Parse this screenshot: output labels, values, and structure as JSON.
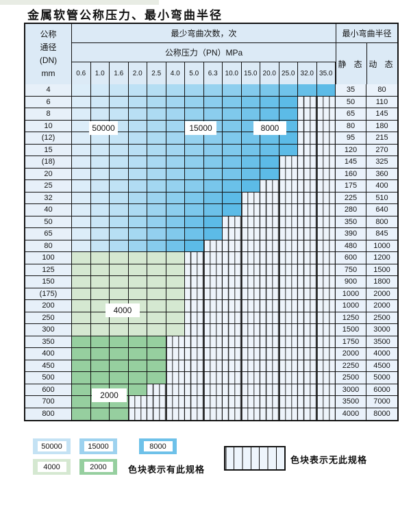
{
  "title": "金属软管公称压力、最小弯曲半径",
  "table": {
    "header": {
      "dn_lines": [
        "公称",
        "通径",
        "(DN)",
        "mm"
      ],
      "cycles_label": "最少弯曲次数，次",
      "radius_label": "最小弯曲半径",
      "pressure_label": "公称压力（PN）MPa",
      "pressure_columns": [
        "0.6",
        "1.0",
        "1.6",
        "2.0",
        "2.5",
        "4.0",
        "5.0",
        "6.3",
        "10.0",
        "15.0",
        "20.0",
        "25.0",
        "32.0",
        "35.0"
      ],
      "static_label": "静 态",
      "dynamic_label": "动 态"
    },
    "rows": [
      {
        "dn": "4",
        "colored": 14,
        "zone": "blue",
        "static": "35",
        "dynamic": "80"
      },
      {
        "dn": "6",
        "colored": 12,
        "zone": "blue",
        "static": "50",
        "dynamic": "110"
      },
      {
        "dn": "8",
        "colored": 12,
        "zone": "blue",
        "static": "65",
        "dynamic": "145"
      },
      {
        "dn": "10",
        "colored": 12,
        "zone": "blue",
        "static": "80",
        "dynamic": "180"
      },
      {
        "dn": "(12)",
        "colored": 12,
        "zone": "blue",
        "static": "95",
        "dynamic": "215"
      },
      {
        "dn": "15",
        "colored": 12,
        "zone": "blue",
        "static": "120",
        "dynamic": "270"
      },
      {
        "dn": "(18)",
        "colored": 11,
        "zone": "blue",
        "static": "145",
        "dynamic": "325"
      },
      {
        "dn": "20",
        "colored": 11,
        "zone": "blue",
        "static": "160",
        "dynamic": "360"
      },
      {
        "dn": "25",
        "colored": 10,
        "zone": "blue",
        "static": "175",
        "dynamic": "400"
      },
      {
        "dn": "32",
        "colored": 9,
        "zone": "blue",
        "static": "225",
        "dynamic": "510"
      },
      {
        "dn": "40",
        "colored": 9,
        "zone": "blue",
        "static": "280",
        "dynamic": "640"
      },
      {
        "dn": "50",
        "colored": 8,
        "zone": "blue",
        "static": "350",
        "dynamic": "800"
      },
      {
        "dn": "65",
        "colored": 8,
        "zone": "blue",
        "static": "390",
        "dynamic": "845"
      },
      {
        "dn": "80",
        "colored": 7,
        "zone": "blue",
        "static": "480",
        "dynamic": "1000"
      },
      {
        "dn": "100",
        "colored": 6,
        "zone": "green4000",
        "static": "600",
        "dynamic": "1200"
      },
      {
        "dn": "125",
        "colored": 6,
        "zone": "green4000",
        "static": "750",
        "dynamic": "1500"
      },
      {
        "dn": "150",
        "colored": 6,
        "zone": "green4000",
        "static": "900",
        "dynamic": "1800"
      },
      {
        "dn": "(175)",
        "colored": 6,
        "zone": "green4000",
        "static": "1000",
        "dynamic": "2000"
      },
      {
        "dn": "200",
        "colored": 6,
        "zone": "green4000",
        "static": "1000",
        "dynamic": "2000"
      },
      {
        "dn": "250",
        "colored": 6,
        "zone": "green4000",
        "static": "1250",
        "dynamic": "2500"
      },
      {
        "dn": "300",
        "colored": 6,
        "zone": "green4000",
        "static": "1500",
        "dynamic": "3000"
      },
      {
        "dn": "350",
        "colored": 5,
        "zone": "green2000",
        "static": "1750",
        "dynamic": "3500"
      },
      {
        "dn": "400",
        "colored": 5,
        "zone": "green2000",
        "static": "2000",
        "dynamic": "4000"
      },
      {
        "dn": "450",
        "colored": 5,
        "zone": "green2000",
        "static": "2250",
        "dynamic": "4500"
      },
      {
        "dn": "500",
        "colored": 5,
        "zone": "green2000",
        "static": "2500",
        "dynamic": "5000"
      },
      {
        "dn": "600",
        "colored": 4,
        "zone": "green2000",
        "static": "3000",
        "dynamic": "6000"
      },
      {
        "dn": "700",
        "colored": 3,
        "zone": "green2000",
        "static": "3500",
        "dynamic": "7000"
      },
      {
        "dn": "800",
        "colored": 3,
        "zone": "green2000",
        "static": "4000",
        "dynamic": "8000"
      }
    ],
    "zone_labels": [
      "50000",
      "15000",
      "8000",
      "4000",
      "2000"
    ]
  },
  "legend": {
    "items": [
      {
        "label": "50000",
        "color": "#c4e2f4"
      },
      {
        "label": "15000",
        "color": "#9dd2ef"
      },
      {
        "label": "8000",
        "color": "#6ec1e9"
      },
      {
        "label": "4000",
        "color": "#d5e8d1"
      },
      {
        "label": "2000",
        "color": "#96cf9f"
      }
    ],
    "has_spec_text": "色块表示有此规格",
    "no_spec_text": "色块表示无此规格"
  },
  "colors": {
    "blue_start": "#dcedf9",
    "blue_end": "#5cbbe7",
    "green4000": "#d5e8d1",
    "green2000": "#96cf9f",
    "header_bg": "#dceaf6",
    "hatch_bg": "#eef4fb",
    "border": "#111111"
  }
}
